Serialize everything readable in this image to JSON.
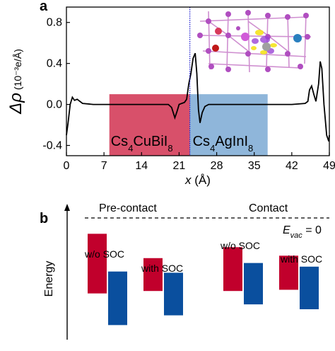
{
  "chart_data": [
    {
      "panel": "a",
      "type": "line",
      "xlabel_var": "x",
      "xlabel_unit": " (Å)",
      "ylabel_symbol": "Δρ",
      "ylabel_unit": "(10⁻³e/Å)",
      "xlim": [
        0,
        49
      ],
      "ylim": [
        -0.5,
        0.95
      ],
      "xticks": [
        0,
        7,
        14,
        21,
        28,
        35,
        42,
        49
      ],
      "yticks": [
        -0.4,
        0.0,
        0.4,
        0.8
      ],
      "ytick_labels": [
        "-0.4",
        "0.0",
        "0.4",
        "0.8"
      ],
      "interface_x": 23,
      "regions": [
        {
          "name_main": "Cs",
          "sub1": "4",
          "name_mid": "CuBiI",
          "sub2": "8",
          "x": [
            8,
            23
          ],
          "y": [
            -0.5,
            0.1
          ],
          "color": "#d8506a"
        },
        {
          "name_main": "Cs",
          "sub1": "4",
          "name_mid": "AgInI",
          "sub2": "8",
          "x": [
            23,
            37.5
          ],
          "y": [
            -0.5,
            0.1
          ],
          "color": "#8fb6da"
        }
      ],
      "series": [
        {
          "color": "#000000",
          "points": [
            [
              0.0,
              -0.3
            ],
            [
              0.3,
              -0.18
            ],
            [
              0.7,
              0.0
            ],
            [
              1.1,
              0.07
            ],
            [
              1.5,
              0.04
            ],
            [
              2.0,
              0.05
            ],
            [
              3.0,
              0.01
            ],
            [
              5,
              0.0
            ],
            [
              10,
              0.0
            ],
            [
              16,
              0.0
            ],
            [
              19.0,
              0.0
            ],
            [
              19.6,
              -0.03
            ],
            [
              20.2,
              -0.13
            ],
            [
              20.6,
              -0.07
            ],
            [
              21.0,
              0.0
            ],
            [
              21.5,
              0.01
            ],
            [
              22.0,
              0.02
            ],
            [
              22.4,
              0.05
            ],
            [
              22.8,
              0.2
            ],
            [
              23.2,
              0.3
            ],
            [
              23.6,
              0.45
            ],
            [
              24.0,
              0.5
            ],
            [
              24.3,
              0.3
            ],
            [
              24.6,
              -0.05
            ],
            [
              24.9,
              -0.18
            ],
            [
              25.3,
              -0.08
            ],
            [
              25.8,
              -0.02
            ],
            [
              26.5,
              0.0
            ],
            [
              30,
              0.0
            ],
            [
              36,
              0.0
            ],
            [
              42,
              0.0
            ],
            [
              44.5,
              0.01
            ],
            [
              45.0,
              0.03
            ],
            [
              45.3,
              0.14
            ],
            [
              45.7,
              0.18
            ],
            [
              46.1,
              0.1
            ],
            [
              46.5,
              0.03
            ],
            [
              47.0,
              0.2
            ],
            [
              47.3,
              0.42
            ],
            [
              47.6,
              0.35
            ],
            [
              48.0,
              0.0
            ],
            [
              48.5,
              -0.3
            ],
            [
              48.9,
              -0.36
            ],
            [
              49.0,
              -0.3
            ]
          ]
        }
      ]
    },
    {
      "panel": "b",
      "type": "bar",
      "ylabel": "Energy",
      "groups": [
        {
          "header": "Pre-contact",
          "label": "w/o SOC",
          "red": [
            -0.13,
            -0.62
          ],
          "blue": [
            -0.44,
            -0.88
          ]
        },
        {
          "label": "with SOC",
          "red": [
            -0.33,
            -0.6
          ],
          "blue": [
            -0.45,
            -0.8
          ]
        },
        {
          "header": "Contact",
          "label": "w/o SOC",
          "red": [
            -0.24,
            -0.6
          ],
          "blue": [
            -0.37,
            -0.71
          ]
        },
        {
          "label": "with SOC",
          "red": [
            -0.31,
            -0.59
          ],
          "blue": [
            -0.4,
            -0.75
          ]
        }
      ],
      "evac_label_main": "E",
      "evac_label_sub": "vac",
      "evac_label_rest": " = 0",
      "colors": {
        "red": "#c1002c",
        "blue": "#0a4f9e"
      }
    }
  ],
  "panel_labels": {
    "a": "a",
    "b": "b"
  }
}
